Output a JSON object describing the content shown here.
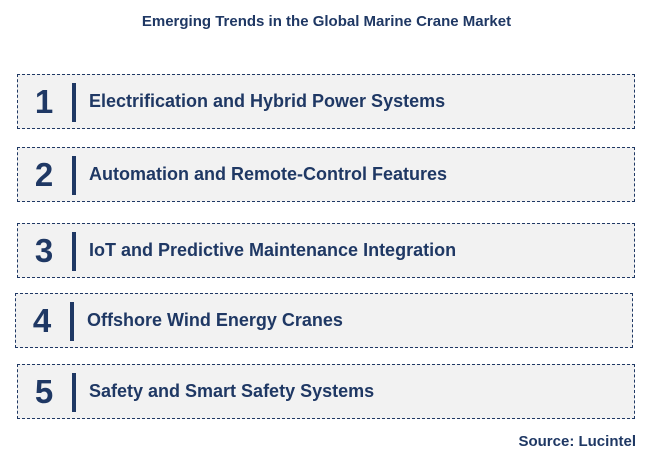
{
  "title": "Emerging Trends in the Global Marine Crane Market",
  "items": [
    {
      "number": "1",
      "label": "Electrification and Hybrid Power Systems"
    },
    {
      "number": "2",
      "label": "Automation and Remote-Control Features"
    },
    {
      "number": "3",
      "label": "IoT and Predictive Maintenance Integration"
    },
    {
      "number": "4",
      "label": "Offshore Wind Energy Cranes"
    },
    {
      "number": "5",
      "label": "Safety and Smart Safety Systems"
    }
  ],
  "source": "Source: Lucintel",
  "colors": {
    "text": "#1f3864",
    "row_background": "#f2f2f2",
    "border": "#1f3864"
  }
}
